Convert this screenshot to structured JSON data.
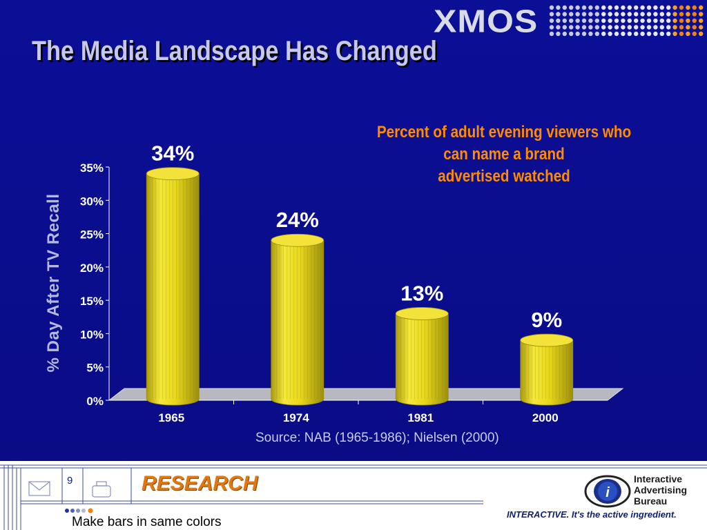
{
  "header": {
    "logo_text": "XMOS",
    "title": "The Media Landscape Has Changed"
  },
  "chart_data": {
    "type": "bar",
    "title": "Percent of adult evening viewers who can name a brand advertised watched",
    "title_lines": [
      "Percent of adult evening viewers who",
      "can name a brand",
      "advertised watched"
    ],
    "categories": [
      "1965",
      "1974",
      "1981",
      "2000"
    ],
    "values": [
      34,
      24,
      13,
      9
    ],
    "data_labels": [
      "34%",
      "24%",
      "13%",
      "9%"
    ],
    "ylabel": "% Day After TV Recall",
    "xlabel": "",
    "ylim": [
      0,
      35
    ],
    "yticks": [
      "0%",
      "5%",
      "10%",
      "15%",
      "20%",
      "25%",
      "30%",
      "35%"
    ],
    "grid": false,
    "bar_color": "#e8d81c"
  },
  "source": "Source: NAB (1965-1986);  Nielsen (2000)",
  "footer": {
    "page_number": "9",
    "section": "RESEARCH",
    "note": "Make bars in same colors",
    "org_lines": [
      "Interactive",
      "Advertising",
      "Bureau"
    ],
    "tagline_brand": "INTERACTIVE.",
    "tagline_rest": " It's the active ingredient."
  },
  "colors": {
    "background": "#0a0e8c",
    "title": "#c6c8ee",
    "accent": "#ff8c00",
    "bar": "#e8d81c"
  }
}
